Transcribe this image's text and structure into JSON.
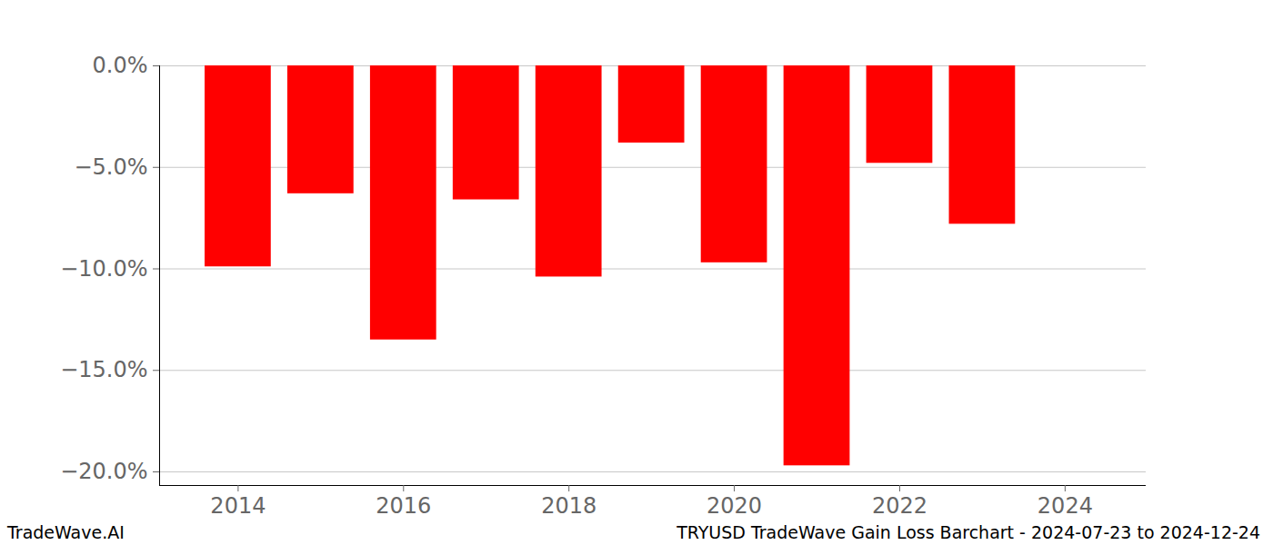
{
  "chart_data": {
    "type": "bar",
    "title": "TRYUSD TradeWave Gain Loss Barchart - 2024-07-23 to 2024-12-24",
    "source": "TradeWave.AI",
    "x": [
      2014,
      2015,
      2016,
      2017,
      2018,
      2019,
      2020,
      2021,
      2022,
      2023
    ],
    "values": [
      -9.9,
      -6.3,
      -13.5,
      -6.6,
      -10.4,
      -3.8,
      -9.7,
      -19.7,
      -4.8,
      -7.8
    ],
    "color": "#ff0000",
    "xlim": [
      2013.05,
      2024.98
    ],
    "xticks": [
      2014,
      2016,
      2018,
      2020,
      2022,
      2024
    ],
    "ylim": [
      -20.67,
      0
    ],
    "yticks": [
      {
        "value": 0,
        "label": "0.0%"
      },
      {
        "value": -5,
        "label": "−5.0%"
      },
      {
        "value": -10,
        "label": "−10.0%"
      },
      {
        "value": -15,
        "label": "−15.0%"
      },
      {
        "value": -20,
        "label": "−20.0%"
      }
    ],
    "grid": true
  }
}
